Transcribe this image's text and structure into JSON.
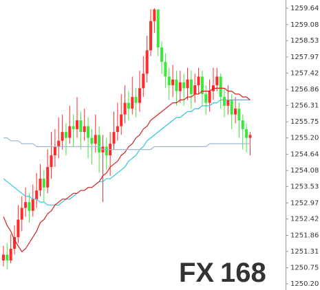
{
  "chart_data": {
    "type": "candlestick",
    "ylim": [
      1250.2,
      1259.64
    ],
    "yticks": [
      1259.64,
      1259.08,
      1258.53,
      1257.97,
      1257.42,
      1256.86,
      1256.31,
      1255.75,
      {
        "value": 1255.2,
        "label": "1255.20"
      },
      1254.64,
      1254.08,
      1253.53,
      1252.97,
      1252.42,
      1251.86,
      1251.31,
      1250.75,
      {
        "value": 1250.2,
        "label": "1250.20"
      }
    ],
    "up_color": "#ff2a2a",
    "down_color": "#3ae83a",
    "candles": [
      [
        1251.0,
        1251.5,
        1250.8,
        1251.2
      ],
      [
        1251.2,
        1251.6,
        1250.7,
        1251.0
      ],
      [
        1251.0,
        1251.9,
        1250.9,
        1251.4
      ],
      [
        1251.4,
        1252.2,
        1251.2,
        1251.8
      ],
      [
        1251.8,
        1252.9,
        1251.6,
        1252.4
      ],
      [
        1252.4,
        1253.2,
        1252.0,
        1252.8
      ],
      [
        1252.8,
        1253.5,
        1252.5,
        1253.0
      ],
      [
        1253.0,
        1253.3,
        1252.3,
        1252.7
      ],
      [
        1252.7,
        1253.6,
        1252.5,
        1253.1
      ],
      [
        1253.1,
        1254.0,
        1252.8,
        1253.4
      ],
      [
        1253.4,
        1254.3,
        1253.2,
        1253.8
      ],
      [
        1253.8,
        1254.1,
        1253.0,
        1253.5
      ],
      [
        1253.5,
        1254.8,
        1253.3,
        1254.2
      ],
      [
        1254.2,
        1255.4,
        1253.8,
        1254.6
      ],
      [
        1254.6,
        1255.5,
        1254.2,
        1254.9
      ],
      [
        1254.9,
        1255.9,
        1254.5,
        1255.1
      ],
      [
        1255.1,
        1256.0,
        1254.8,
        1255.4
      ],
      [
        1255.4,
        1255.7,
        1254.6,
        1255.2
      ],
      [
        1255.2,
        1256.3,
        1255.0,
        1255.6
      ],
      [
        1255.6,
        1256.0,
        1254.9,
        1255.5
      ],
      [
        1255.5,
        1256.6,
        1255.2,
        1255.8
      ],
      [
        1255.8,
        1256.1,
        1254.8,
        1255.4
      ],
      [
        1255.4,
        1256.2,
        1255.1,
        1255.6
      ],
      [
        1255.6,
        1255.9,
        1254.5,
        1255.2
      ],
      [
        1255.2,
        1255.5,
        1254.3,
        1255.0
      ],
      [
        1255.0,
        1256.0,
        1254.7,
        1255.3
      ],
      [
        1255.3,
        1255.6,
        1254.0,
        1254.7
      ],
      [
        1254.7,
        1255.3,
        1253.0,
        1254.9
      ],
      [
        1254.9,
        1255.2,
        1254.1,
        1254.6
      ],
      [
        1254.6,
        1255.4,
        1253.9,
        1255.0
      ],
      [
        1255.0,
        1256.1,
        1254.8,
        1255.4
      ],
      [
        1255.4,
        1256.4,
        1255.1,
        1255.6
      ],
      [
        1255.6,
        1256.7,
        1255.3,
        1256.0
      ],
      [
        1256.0,
        1257.0,
        1255.7,
        1256.4
      ],
      [
        1256.4,
        1256.8,
        1255.8,
        1256.2
      ],
      [
        1256.2,
        1257.3,
        1256.0,
        1256.6
      ],
      [
        1256.6,
        1256.9,
        1255.9,
        1256.4
      ],
      [
        1256.4,
        1257.5,
        1256.1,
        1256.9
      ],
      [
        1256.9,
        1258.0,
        1256.6,
        1257.4
      ],
      [
        1257.4,
        1258.7,
        1257.1,
        1258.2
      ],
      [
        1258.2,
        1259.6,
        1258.0,
        1259.2
      ],
      [
        1259.2,
        1259.64,
        1258.8,
        1259.6
      ],
      [
        1259.6,
        1259.6,
        1258.0,
        1258.3
      ],
      [
        1258.3,
        1258.5,
        1257.4,
        1257.8
      ],
      [
        1257.8,
        1258.1,
        1256.9,
        1257.3
      ],
      [
        1257.3,
        1257.6,
        1256.5,
        1257.0
      ],
      [
        1257.0,
        1257.7,
        1256.6,
        1257.2
      ],
      [
        1257.2,
        1257.5,
        1256.3,
        1256.8
      ],
      [
        1256.8,
        1257.5,
        1256.4,
        1257.1
      ],
      [
        1257.1,
        1257.4,
        1256.3,
        1256.9
      ],
      [
        1256.9,
        1257.6,
        1256.5,
        1257.2
      ],
      [
        1257.2,
        1257.5,
        1256.2,
        1256.7
      ],
      [
        1256.7,
        1257.4,
        1256.4,
        1257.0
      ],
      [
        1257.0,
        1257.6,
        1256.7,
        1257.3
      ],
      [
        1257.3,
        1257.5,
        1256.3,
        1256.7
      ],
      [
        1256.7,
        1257.0,
        1256.0,
        1256.4
      ],
      [
        1256.4,
        1257.2,
        1256.1,
        1256.8
      ],
      [
        1256.8,
        1257.6,
        1256.5,
        1257.0
      ],
      [
        1257.0,
        1257.6,
        1256.8,
        1257.3
      ],
      [
        1257.3,
        1257.4,
        1256.2,
        1256.6
      ],
      [
        1256.6,
        1256.9,
        1255.9,
        1256.3
      ],
      [
        1256.3,
        1257.0,
        1256.0,
        1256.5
      ],
      [
        1256.5,
        1256.7,
        1255.5,
        1256.0
      ],
      [
        1256.0,
        1256.6,
        1255.7,
        1256.2
      ],
      [
        1256.2,
        1256.4,
        1255.2,
        1255.8
      ],
      [
        1255.8,
        1256.0,
        1254.8,
        1255.5
      ],
      [
        1255.5,
        1255.7,
        1254.7,
        1255.2
      ],
      [
        1255.2,
        1255.4,
        1254.6,
        1255.3
      ]
    ],
    "series": [
      {
        "color": "#2ec4d6",
        "values": [
          1253.8,
          1253.7,
          1253.6,
          1253.5,
          1253.4,
          1253.3,
          1253.2,
          1253.2,
          1253.1,
          1253.1,
          1253.0,
          1253.0,
          1252.9,
          1252.9,
          1252.9,
          1252.9,
          1253.0,
          1253.1,
          1253.1,
          1253.2,
          1253.3,
          1253.4,
          1253.4,
          1253.5,
          1253.5,
          1253.6,
          1253.7,
          1253.7,
          1253.8,
          1253.8,
          1253.9,
          1254.0,
          1254.1,
          1254.2,
          1254.4,
          1254.5,
          1254.6,
          1254.8,
          1254.9,
          1255.1,
          1255.2,
          1255.3,
          1255.4,
          1255.5,
          1255.6,
          1255.7,
          1255.8,
          1255.9,
          1255.9,
          1256.0,
          1256.1,
          1256.1,
          1256.2,
          1256.2,
          1256.3,
          1256.3,
          1256.3,
          1256.4,
          1256.4,
          1256.5,
          1256.5,
          1256.5,
          1256.5,
          1256.5,
          1256.5,
          1256.5,
          1256.5,
          1256.5
        ]
      },
      {
        "color": "#d81e1e",
        "values": [
          1252.5,
          1252.2,
          1252.0,
          1251.7,
          1251.5,
          1251.3,
          1251.4,
          1251.6,
          1251.8,
          1252.0,
          1252.3,
          1252.4,
          1252.6,
          1252.7,
          1252.9,
          1253.0,
          1253.1,
          1253.1,
          1253.2,
          1253.3,
          1253.3,
          1253.4,
          1253.4,
          1253.5,
          1253.5,
          1253.6,
          1253.7,
          1253.9,
          1254.0,
          1254.2,
          1254.3,
          1254.4,
          1254.6,
          1254.7,
          1254.9,
          1255.0,
          1255.2,
          1255.3,
          1255.5,
          1255.6,
          1255.8,
          1255.9,
          1256.0,
          1256.1,
          1256.2,
          1256.3,
          1256.4,
          1256.4,
          1256.5,
          1256.5,
          1256.6,
          1256.6,
          1256.7,
          1256.7,
          1256.8,
          1256.8,
          1256.8,
          1256.9,
          1256.9,
          1256.9,
          1256.9,
          1256.8,
          1256.8,
          1256.7,
          1256.7,
          1256.6,
          1256.6,
          1256.5
        ]
      },
      {
        "color": "#9fb8d0",
        "values": [
          1255.2,
          1255.2,
          1255.1,
          1255.1,
          1255.1,
          1255.0,
          1255.0,
          1255.0,
          1255.0,
          1254.9,
          1254.9,
          1254.9,
          1254.9,
          1254.9,
          1254.9,
          1254.9,
          1254.9,
          1254.9,
          1254.9,
          1254.9,
          1254.9,
          1254.9,
          1254.9,
          1254.9,
          1254.9,
          1254.9,
          1254.9,
          1254.8,
          1254.8,
          1254.8,
          1254.8,
          1254.8,
          1254.8,
          1254.8,
          1254.8,
          1254.8,
          1254.8,
          1254.8,
          1254.8,
          1254.8,
          1254.8,
          1254.9,
          1254.9,
          1254.9,
          1254.9,
          1254.9,
          1254.9,
          1254.9,
          1254.9,
          1254.9,
          1254.9,
          1254.9,
          1254.9,
          1254.9,
          1254.9,
          1254.9,
          1255.0,
          1255.0,
          1255.0,
          1255.0,
          1255.0,
          1255.0,
          1255.0,
          1255.0,
          1255.0,
          1255.0,
          1255.0,
          1255.0
        ]
      }
    ],
    "watermark": {
      "part1": "FX",
      "part1_color": "#f6b796",
      "part2": "168",
      "part2_color": "#7ea6d8"
    }
  }
}
